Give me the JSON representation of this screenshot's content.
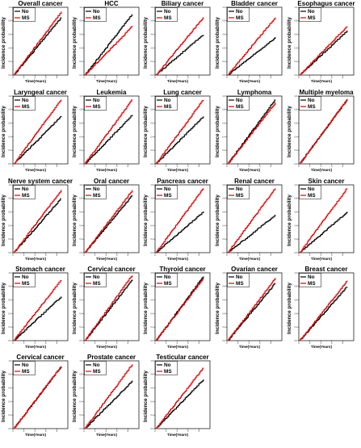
{
  "chart_data": [
    {
      "type": "line",
      "title": "Overall cancer",
      "xlabel": "Time(Years)",
      "ylabel": "Incidence probability",
      "legend": "top-left",
      "xlim": [
        0,
        10
      ],
      "ylim": [
        0,
        1
      ],
      "series": [
        {
          "name": "No",
          "color": "#000000",
          "x": [
            0,
            10
          ],
          "y": [
            0,
            0.85
          ]
        },
        {
          "name": "MS",
          "color": "#e00000",
          "x": [
            0,
            10
          ],
          "y": [
            0,
            0.93
          ]
        }
      ]
    },
    {
      "type": "line",
      "title": "HCC",
      "xlabel": "Time(Years)",
      "ylabel": "Incidence probability",
      "legend": "top-left",
      "xlim": [
        0,
        10
      ],
      "ylim": [
        0,
        1
      ],
      "series": [
        {
          "name": "No",
          "color": "#000000",
          "x": [
            0,
            10
          ],
          "y": [
            0,
            0.9
          ]
        },
        {
          "name": "MS",
          "color": "#e00000",
          "x": [
            0,
            10
          ],
          "y": [
            0,
            0.72
          ]
        }
      ]
    },
    {
      "type": "line",
      "title": "Biliary cancer",
      "xlabel": "Time(Years)",
      "ylabel": "Incidence probability",
      "legend": "top-left",
      "xlim": [
        0,
        10
      ],
      "ylim": [
        0,
        1
      ],
      "series": [
        {
          "name": "No",
          "color": "#000000",
          "x": [
            0,
            10
          ],
          "y": [
            0,
            0.6
          ]
        },
        {
          "name": "MS",
          "color": "#e00000",
          "x": [
            0,
            10
          ],
          "y": [
            0,
            0.85
          ]
        }
      ]
    },
    {
      "type": "line",
      "title": "Bladder cancer",
      "xlabel": "Time(Years)",
      "ylabel": "Incidence probability",
      "legend": "top-left",
      "xlim": [
        0,
        10
      ],
      "ylim": [
        0,
        1
      ],
      "series": [
        {
          "name": "No",
          "color": "#000000",
          "x": [
            0,
            10
          ],
          "y": [
            0,
            0.55
          ]
        },
        {
          "name": "MS",
          "color": "#e00000",
          "x": [
            0,
            10
          ],
          "y": [
            0,
            0.85
          ]
        }
      ]
    },
    {
      "type": "line",
      "title": "Esophagus cancer",
      "xlabel": "Time(Years)",
      "ylabel": "Incidence probability",
      "legend": "top-left",
      "xlim": [
        0,
        10
      ],
      "ylim": [
        0,
        1
      ],
      "series": [
        {
          "name": "No",
          "color": "#000000",
          "x": [
            0,
            10
          ],
          "y": [
            0,
            0.65
          ]
        },
        {
          "name": "MS",
          "color": "#e00000",
          "x": [
            0,
            10
          ],
          "y": [
            0,
            0.72
          ]
        }
      ]
    },
    {
      "type": "line",
      "title": "Laryngeal cancer",
      "xlabel": "Time(Years)",
      "ylabel": "Incidence probability",
      "legend": "top-left",
      "xlim": [
        0,
        10
      ],
      "ylim": [
        0,
        1
      ],
      "series": [
        {
          "name": "No",
          "color": "#000000",
          "x": [
            0,
            10
          ],
          "y": [
            0,
            0.7
          ]
        },
        {
          "name": "MS",
          "color": "#e00000",
          "x": [
            0,
            10
          ],
          "y": [
            0,
            0.95
          ]
        }
      ]
    },
    {
      "type": "line",
      "title": "Leukemia",
      "xlabel": "Time(Years)",
      "ylabel": "Incidence probability",
      "legend": "top-left",
      "xlim": [
        0,
        10
      ],
      "ylim": [
        0,
        1
      ],
      "series": [
        {
          "name": "No",
          "color": "#000000",
          "x": [
            0,
            10
          ],
          "y": [
            0,
            0.72
          ]
        },
        {
          "name": "MS",
          "color": "#e00000",
          "x": [
            0,
            10
          ],
          "y": [
            0,
            0.95
          ]
        }
      ]
    },
    {
      "type": "line",
      "title": "Lung cancer",
      "xlabel": "Time(Years)",
      "ylabel": "Incidence probability",
      "legend": "top-left",
      "xlim": [
        0,
        10
      ],
      "ylim": [
        0,
        1
      ],
      "series": [
        {
          "name": "No",
          "color": "#000000",
          "x": [
            0,
            10
          ],
          "y": [
            0,
            0.7
          ]
        },
        {
          "name": "MS",
          "color": "#e00000",
          "x": [
            0,
            10
          ],
          "y": [
            0,
            0.95
          ]
        }
      ]
    },
    {
      "type": "line",
      "title": "Lymphoma",
      "xlabel": "Time(Years)",
      "ylabel": "Incidence probability",
      "legend": "top-left",
      "xlim": [
        0,
        10
      ],
      "ylim": [
        0,
        1
      ],
      "series": [
        {
          "name": "No",
          "color": "#000000",
          "x": [
            0,
            10
          ],
          "y": [
            0,
            0.95
          ]
        },
        {
          "name": "MS",
          "color": "#e00000",
          "x": [
            0,
            10
          ],
          "y": [
            0,
            0.9
          ]
        }
      ]
    },
    {
      "type": "line",
      "title": "Multiple myeloma",
      "xlabel": "Time(Years)",
      "ylabel": "Incidence probability",
      "legend": "top-left",
      "xlim": [
        0,
        10
      ],
      "ylim": [
        0,
        1
      ],
      "series": [
        {
          "name": "No",
          "color": "#000000",
          "x": [
            0,
            10
          ],
          "y": [
            0,
            0.95
          ]
        },
        {
          "name": "MS",
          "color": "#e00000",
          "x": [
            0,
            10
          ],
          "y": [
            0,
            0.95
          ]
        }
      ]
    },
    {
      "type": "line",
      "title": "Nerve system cancer",
      "xlabel": "Time(Years)",
      "ylabel": "Incidence probability",
      "legend": "top-left",
      "xlim": [
        0,
        10
      ],
      "ylim": [
        0,
        1
      ],
      "series": [
        {
          "name": "No",
          "color": "#000000",
          "x": [
            0,
            10
          ],
          "y": [
            0,
            0.8
          ]
        },
        {
          "name": "MS",
          "color": "#e00000",
          "x": [
            0,
            10
          ],
          "y": [
            0,
            0.92
          ]
        }
      ]
    },
    {
      "type": "line",
      "title": "Oral cancer",
      "xlabel": "Time(Years)",
      "ylabel": "Incidence probability",
      "legend": "top-left",
      "xlim": [
        0,
        10
      ],
      "ylim": [
        0,
        1
      ],
      "series": [
        {
          "name": "No",
          "color": "#000000",
          "x": [
            0,
            10
          ],
          "y": [
            0,
            0.85
          ]
        },
        {
          "name": "MS",
          "color": "#e00000",
          "x": [
            0,
            10
          ],
          "y": [
            0,
            0.92
          ]
        }
      ]
    },
    {
      "type": "line",
      "title": "Pancreas cancer",
      "xlabel": "Time(Years)",
      "ylabel": "Incidence probability",
      "legend": "top-left",
      "xlim": [
        0,
        10
      ],
      "ylim": [
        0,
        1
      ],
      "series": [
        {
          "name": "No",
          "color": "#000000",
          "x": [
            0,
            10
          ],
          "y": [
            0,
            0.6
          ]
        },
        {
          "name": "MS",
          "color": "#e00000",
          "x": [
            0,
            10
          ],
          "y": [
            0,
            0.95
          ]
        }
      ]
    },
    {
      "type": "line",
      "title": "Renal cancer",
      "xlabel": "Time(Years)",
      "ylabel": "Incidence probability",
      "legend": "top-left",
      "xlim": [
        0,
        10
      ],
      "ylim": [
        0,
        1
      ],
      "series": [
        {
          "name": "No",
          "color": "#000000",
          "x": [
            0,
            10
          ],
          "y": [
            0,
            0.55
          ]
        },
        {
          "name": "MS",
          "color": "#e00000",
          "x": [
            0,
            10
          ],
          "y": [
            0,
            0.95
          ]
        }
      ]
    },
    {
      "type": "line",
      "title": "Skin cancer",
      "xlabel": "Time(Years)",
      "ylabel": "Incidence probability",
      "legend": "top-left",
      "xlim": [
        0,
        10
      ],
      "ylim": [
        0,
        1
      ],
      "series": [
        {
          "name": "No",
          "color": "#000000",
          "x": [
            0,
            10
          ],
          "y": [
            0,
            0.6
          ]
        },
        {
          "name": "MS",
          "color": "#e00000",
          "x": [
            0,
            10
          ],
          "y": [
            0,
            0.95
          ]
        }
      ]
    },
    {
      "type": "line",
      "title": "Stomach cancer",
      "xlabel": "Time(Years)",
      "ylabel": "Incidence probability",
      "legend": "top-left",
      "xlim": [
        0,
        10
      ],
      "ylim": [
        0,
        1
      ],
      "series": [
        {
          "name": "No",
          "color": "#000000",
          "x": [
            0,
            10
          ],
          "y": [
            0,
            0.65
          ]
        },
        {
          "name": "MS",
          "color": "#e00000",
          "x": [
            0,
            10
          ],
          "y": [
            0,
            0.9
          ]
        }
      ]
    },
    {
      "type": "line",
      "title": "Cervical cancer",
      "xlabel": "Time(Years)",
      "ylabel": "Incidence probability",
      "legend": "top-left",
      "xlim": [
        0,
        10
      ],
      "ylim": [
        0,
        1
      ],
      "series": [
        {
          "name": "No",
          "color": "#000000",
          "x": [
            0,
            10
          ],
          "y": [
            0,
            0.9
          ]
        },
        {
          "name": "MS",
          "color": "#e00000",
          "x": [
            0,
            10
          ],
          "y": [
            0,
            0.97
          ]
        }
      ]
    },
    {
      "type": "line",
      "title": "Thyroid cancer",
      "xlabel": "Time(Years)",
      "ylabel": "Incidence probability",
      "legend": "top-left",
      "xlim": [
        0,
        10
      ],
      "ylim": [
        0,
        1
      ],
      "series": [
        {
          "name": "No",
          "color": "#000000",
          "x": [
            0,
            10
          ],
          "y": [
            0,
            0.95
          ]
        },
        {
          "name": "MS",
          "color": "#e00000",
          "x": [
            0,
            10
          ],
          "y": [
            0,
            0.92
          ]
        }
      ]
    },
    {
      "type": "line",
      "title": "Ovarian cancer",
      "xlabel": "Time(Years)",
      "ylabel": "Incidence probability",
      "legend": "top-left",
      "xlim": [
        0,
        10
      ],
      "ylim": [
        0,
        1
      ],
      "series": [
        {
          "name": "No",
          "color": "#000000",
          "x": [
            0,
            10
          ],
          "y": [
            0,
            0.85
          ]
        },
        {
          "name": "MS",
          "color": "#e00000",
          "x": [
            0,
            10
          ],
          "y": [
            0,
            0.92
          ]
        }
      ]
    },
    {
      "type": "line",
      "title": "Breast cancer",
      "xlabel": "Time(Years)",
      "ylabel": "Incidence probability",
      "legend": "top-left",
      "xlim": [
        0,
        10
      ],
      "ylim": [
        0,
        1
      ],
      "series": [
        {
          "name": "No",
          "color": "#000000",
          "x": [
            0,
            10
          ],
          "y": [
            0,
            0.8
          ]
        },
        {
          "name": "MS",
          "color": "#e00000",
          "x": [
            0,
            10
          ],
          "y": [
            0,
            0.88
          ]
        }
      ]
    },
    {
      "type": "line",
      "title": "Cervical cancer",
      "xlabel": "Time(Years)",
      "ylabel": "Incidence probability",
      "legend": "top-left",
      "xlim": [
        0,
        10
      ],
      "ylim": [
        0,
        1
      ],
      "series": [
        {
          "name": "No",
          "color": "#000000",
          "x": [
            0,
            10
          ],
          "y": [
            0,
            0.92
          ]
        },
        {
          "name": "MS",
          "color": "#e00000",
          "x": [
            0,
            10
          ],
          "y": [
            0,
            0.92
          ]
        }
      ]
    },
    {
      "type": "line",
      "title": "Prostate cancer",
      "xlabel": "Time(Years)",
      "ylabel": "Incidence probability",
      "legend": "top-left",
      "xlim": [
        0,
        10
      ],
      "ylim": [
        0,
        1
      ],
      "series": [
        {
          "name": "No",
          "color": "#000000",
          "x": [
            0,
            10
          ],
          "y": [
            0,
            0.7
          ]
        },
        {
          "name": "MS",
          "color": "#e00000",
          "x": [
            0,
            10
          ],
          "y": [
            0,
            0.95
          ]
        }
      ]
    },
    {
      "type": "line",
      "title": "Testicular cancer",
      "xlabel": "Time(Years)",
      "ylabel": "Incidence probability",
      "legend": "top-left",
      "xlim": [
        0,
        10
      ],
      "ylim": [
        0,
        1
      ],
      "series": [
        {
          "name": "No",
          "color": "#000000",
          "x": [
            0,
            10
          ],
          "y": [
            0,
            0.72
          ]
        },
        {
          "name": "MS",
          "color": "#e00000",
          "x": [
            0,
            10
          ],
          "y": [
            0,
            0.9
          ]
        }
      ]
    }
  ]
}
